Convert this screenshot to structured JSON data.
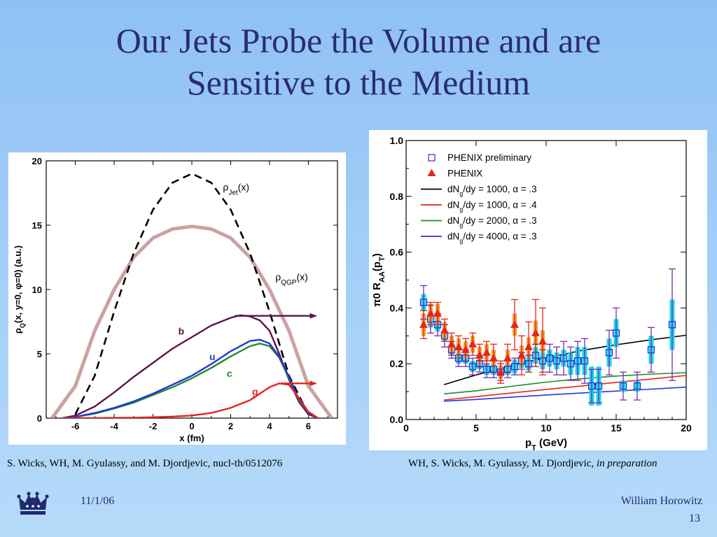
{
  "slide": {
    "title_line1": "Our Jets Probe the Volume and are",
    "title_line2": "Sensitive to the Medium",
    "caption_left": "S. Wicks, WH, M. Gyulassy, and M. Djordjevic, nucl-th/0512076",
    "caption_right_plain": "WH, S. Wicks, M. Gyulassy, M. Djordjevic, ",
    "caption_right_italic": "in preparation",
    "date": "11/1/06",
    "author": "William Horowitz",
    "page_number": "13"
  },
  "chart_data": [
    {
      "type": "line",
      "xlabel": "x (fm)",
      "ylabel_parts": [
        "ρ",
        "Q",
        "(x, y=0, ",
        "φ",
        "=0)  (a.u.)"
      ],
      "xlim": [
        -7.5,
        7.5
      ],
      "ylim": [
        0,
        20
      ],
      "xticks": [
        -6,
        -4,
        -2,
        0,
        2,
        4,
        6
      ],
      "yticks": [
        0,
        5,
        10,
        15,
        20
      ],
      "grid": false,
      "curve_labels": [
        {
          "series": "jet",
          "parts": [
            "ρ",
            "Jet",
            "(x)"
          ]
        },
        {
          "series": "qgp",
          "parts": [
            "ρ",
            "QGP",
            "(x)"
          ]
        }
      ],
      "series": [
        {
          "name": "ρJet(x)",
          "style": "dashed",
          "color": "#000000",
          "x": [
            -6,
            -5,
            -4,
            -3,
            -2,
            -1,
            0,
            1,
            2,
            3,
            4,
            5,
            6
          ],
          "y": [
            0.3,
            3.3,
            8.3,
            12.8,
            16.2,
            18.3,
            19.0,
            18.3,
            16.2,
            12.8,
            8.3,
            3.3,
            0.3
          ]
        },
        {
          "name": "ρQGP(x)",
          "style": "thick",
          "color": "#c9a3a0",
          "x": [
            -7.2,
            -6,
            -5,
            -4,
            -3,
            -2,
            -1,
            0,
            1,
            2,
            3,
            4,
            5,
            6,
            7.2
          ],
          "y": [
            0,
            2.5,
            6.8,
            10.0,
            12.5,
            14.0,
            14.7,
            14.9,
            14.7,
            14.0,
            12.5,
            10.0,
            6.8,
            2.5,
            0
          ]
        },
        {
          "name": "b",
          "color": "#5e1448",
          "x": [
            -6.7,
            -6,
            -5,
            -4,
            -3,
            -2,
            -1,
            0,
            1,
            2,
            2.5,
            3,
            3.5,
            4,
            4.5,
            5,
            5.5,
            6,
            6.5
          ],
          "y": [
            0,
            0.2,
            0.9,
            2.0,
            3.2,
            4.3,
            5.4,
            6.3,
            7.2,
            7.8,
            8.0,
            7.9,
            7.6,
            6.8,
            5.0,
            3.0,
            1.3,
            0.3,
            0
          ]
        },
        {
          "name": "u",
          "color": "#2536d8",
          "x": [
            -6.7,
            -6,
            -5,
            -4,
            -3,
            -2,
            -1,
            0,
            1,
            2,
            3,
            3.5,
            4,
            4.5,
            5,
            5.5,
            6,
            6.5
          ],
          "y": [
            0,
            0.1,
            0.4,
            0.8,
            1.3,
            1.9,
            2.6,
            3.3,
            4.2,
            5.2,
            6.0,
            6.1,
            5.8,
            4.8,
            3.2,
            1.5,
            0.4,
            0
          ]
        },
        {
          "name": "c",
          "color": "#1f8a2a",
          "x": [
            -6.7,
            -6,
            -5,
            -4,
            -3,
            -2,
            -1,
            0,
            1,
            2,
            3,
            3.5,
            4,
            4.5,
            5,
            5.5,
            6,
            6.5
          ],
          "y": [
            0,
            0.1,
            0.35,
            0.75,
            1.2,
            1.8,
            2.4,
            3.1,
            3.9,
            4.8,
            5.6,
            5.8,
            5.6,
            4.7,
            3.1,
            1.4,
            0.4,
            0
          ]
        },
        {
          "name": "g",
          "color": "#e8231e",
          "x": [
            -6.7,
            -5,
            -4,
            -3,
            -2,
            -1,
            0,
            1,
            2,
            3,
            3.5,
            4,
            4.5,
            5,
            5.5,
            6,
            6.5
          ],
          "y": [
            0,
            0.01,
            0.02,
            0.04,
            0.07,
            0.12,
            0.2,
            0.4,
            0.8,
            1.4,
            1.9,
            2.4,
            2.7,
            2.6,
            1.6,
            0.5,
            0
          ]
        }
      ],
      "arrows": [
        {
          "series": "b",
          "from": [
            2.2,
            7.95
          ],
          "to": [
            6.4,
            7.95
          ]
        },
        {
          "series": "g",
          "from": [
            4.6,
            2.7
          ],
          "to": [
            6.4,
            2.7
          ]
        }
      ]
    },
    {
      "type": "scatter",
      "xlabel_parts": [
        "p",
        "T",
        " (GeV)"
      ],
      "ylabel_parts": [
        "π",
        "0",
        " R",
        "AA",
        "(p",
        "T",
        ")"
      ],
      "xlim": [
        0,
        20
      ],
      "ylim": [
        0,
        1.0
      ],
      "xticks": [
        0,
        5,
        10,
        15,
        20
      ],
      "yticks": [
        "0.0",
        "0.2",
        "0.4",
        "0.6",
        "0.8",
        "1.0"
      ],
      "grid": false,
      "legend": {
        "placement": "top-left",
        "entries": [
          {
            "series": "phenix_pre",
            "parts": [
              "PHENIX preliminary"
            ]
          },
          {
            "series": "phenix",
            "parts": [
              "PHENIX"
            ]
          },
          {
            "series": "m1",
            "parts": [
              "dN",
              "g",
              "/dy = 1000, ",
              "α",
              " = .3"
            ]
          },
          {
            "series": "m2",
            "parts": [
              "dN",
              "g",
              "/dy = 1000, ",
              "α",
              " = .4"
            ]
          },
          {
            "series": "m3",
            "parts": [
              "dN",
              "g",
              "/dy = 2000, ",
              "α",
              " = .3"
            ]
          },
          {
            "series": "m4",
            "parts": [
              "dN",
              "g",
              "/dy = 4000, ",
              "α",
              " = .3"
            ]
          }
        ]
      },
      "series": [
        {
          "name": "PHENIX preliminary",
          "marker": "open-square",
          "color": "#7b2aa8",
          "sys_color": "#18d8ee",
          "x": [
            1.25,
            1.75,
            2.25,
            2.75,
            3.25,
            3.75,
            4.25,
            4.75,
            5.25,
            5.75,
            6.25,
            6.75,
            7.25,
            7.75,
            8.25,
            8.75,
            9.25,
            9.75,
            10.25,
            10.75,
            11.25,
            11.75,
            12.25,
            12.75,
            13.25,
            13.75,
            14.5,
            15.0,
            15.5,
            16.5,
            17.5,
            19.0
          ],
          "y": [
            0.42,
            0.36,
            0.34,
            0.3,
            0.25,
            0.22,
            0.22,
            0.19,
            0.2,
            0.18,
            0.18,
            0.17,
            0.18,
            0.19,
            0.21,
            0.2,
            0.23,
            0.21,
            0.22,
            0.21,
            0.22,
            0.2,
            0.21,
            0.21,
            0.12,
            0.12,
            0.24,
            0.31,
            0.12,
            0.12,
            0.25,
            0.34
          ],
          "err": [
            0.06,
            0.05,
            0.04,
            0.04,
            0.03,
            0.03,
            0.03,
            0.03,
            0.03,
            0.03,
            0.03,
            0.03,
            0.03,
            0.03,
            0.03,
            0.03,
            0.04,
            0.04,
            0.05,
            0.05,
            0.06,
            0.06,
            0.07,
            0.08,
            0.06,
            0.06,
            0.08,
            0.09,
            0.05,
            0.05,
            0.08,
            0.2
          ],
          "sys": [
            0.03,
            0.03,
            0.025,
            0.02,
            0.02,
            0.02,
            0.02,
            0.02,
            0.02,
            0.02,
            0.02,
            0.02,
            0.02,
            0.025,
            0.025,
            0.025,
            0.03,
            0.03,
            0.03,
            0.03,
            0.03,
            0.04,
            0.05,
            0.05,
            0.07,
            0.07,
            0.05,
            0.05,
            0.02,
            0.02,
            0.05,
            0.09
          ]
        },
        {
          "name": "PHENIX",
          "marker": "filled-triangle",
          "color": "#e8231e",
          "sys_color": "#f2a12c",
          "x": [
            1.25,
            1.75,
            2.25,
            2.75,
            3.25,
            3.75,
            4.25,
            4.75,
            5.25,
            5.75,
            6.25,
            6.75,
            7.25,
            7.75,
            8.25,
            8.75,
            9.25,
            9.75
          ],
          "y": [
            0.34,
            0.38,
            0.38,
            0.32,
            0.27,
            0.26,
            0.25,
            0.27,
            0.23,
            0.24,
            0.22,
            0.17,
            0.22,
            0.34,
            0.23,
            0.26,
            0.31,
            0.28
          ],
          "err": [
            0.05,
            0.04,
            0.04,
            0.04,
            0.04,
            0.04,
            0.04,
            0.04,
            0.04,
            0.04,
            0.05,
            0.04,
            0.05,
            0.09,
            0.07,
            0.09,
            0.12,
            0.12
          ],
          "sys": [
            0.04,
            0.035,
            0.035,
            0.03,
            0.03,
            0.03,
            0.03,
            0.03,
            0.03,
            0.03,
            0.03,
            0.025,
            0.03,
            0.04,
            0.035,
            0.035,
            0.045,
            0.04
          ]
        },
        {
          "name": "dNg/dy = 1000, α = .3",
          "color": "#000000",
          "x": [
            2.7,
            5,
            7.5,
            10,
            12.5,
            15,
            17.5,
            20
          ],
          "y": [
            0.125,
            0.16,
            0.193,
            0.221,
            0.247,
            0.268,
            0.286,
            0.302
          ]
        },
        {
          "name": "dNg/dy = 1000, α = .4",
          "color": "#e8231e",
          "x": [
            2.7,
            5,
            7.5,
            10,
            12.5,
            15,
            17.5,
            20
          ],
          "y": [
            0.07,
            0.082,
            0.095,
            0.108,
            0.12,
            0.133,
            0.145,
            0.158
          ]
        },
        {
          "name": "dNg/dy = 2000, α = .3",
          "color": "#1f8a2a",
          "x": [
            2.7,
            5,
            7.5,
            10,
            12.5,
            15,
            17.5,
            20
          ],
          "y": [
            0.092,
            0.103,
            0.119,
            0.134,
            0.146,
            0.156,
            0.163,
            0.168
          ]
        },
        {
          "name": "dNg/dy = 4000, α = .3",
          "color": "#2536d8",
          "x": [
            2.7,
            5,
            7.5,
            10,
            12.5,
            15,
            17.5,
            20
          ],
          "y": [
            0.066,
            0.072,
            0.08,
            0.088,
            0.095,
            0.102,
            0.109,
            0.116
          ]
        }
      ]
    }
  ]
}
